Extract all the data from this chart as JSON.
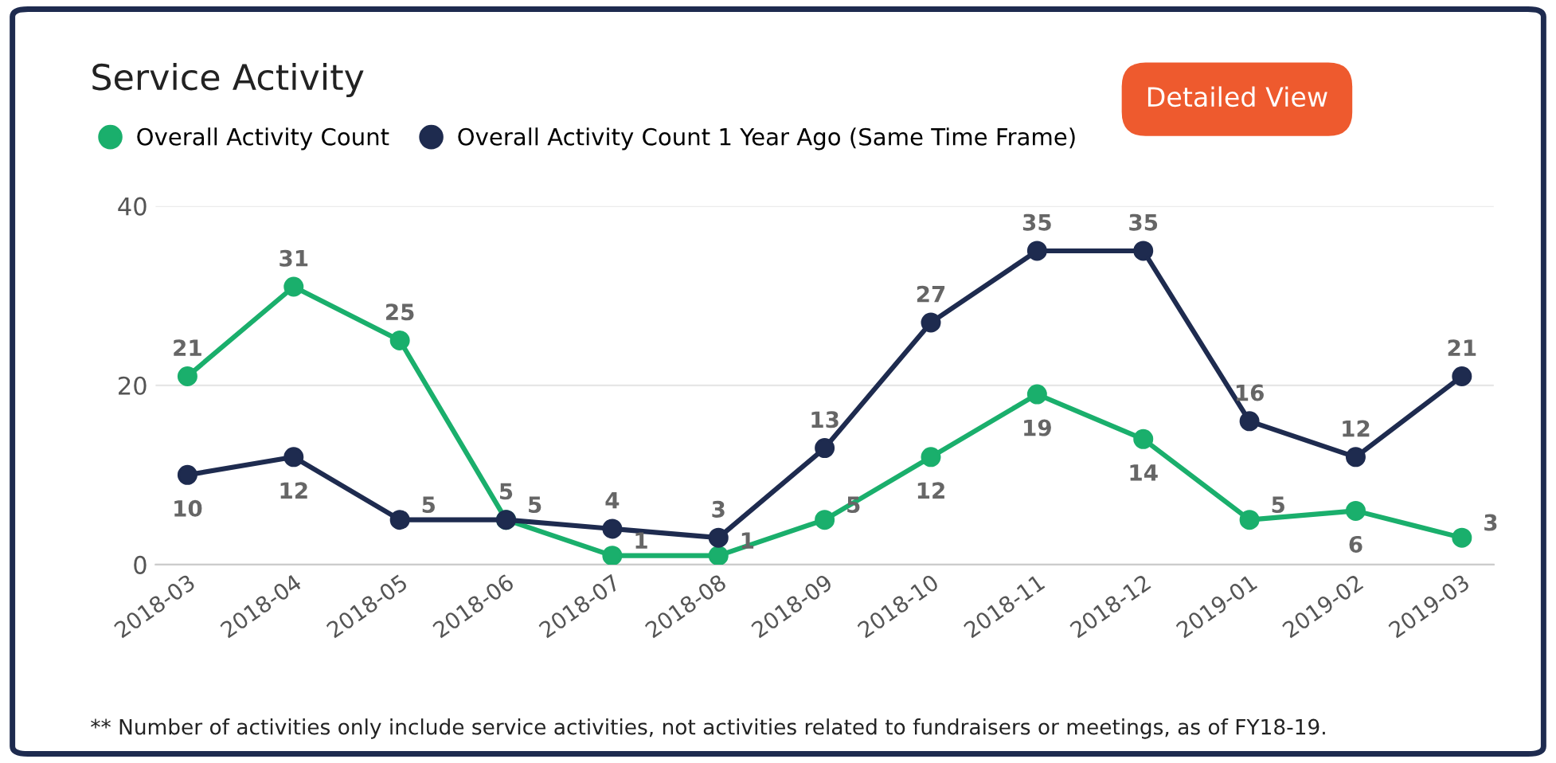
{
  "chart_data": {
    "type": "line",
    "title": "Service Activity",
    "categories": [
      "2018-03",
      "2018-04",
      "2018-05",
      "2018-06",
      "2018-07",
      "2018-08",
      "2018-09",
      "2018-10",
      "2018-11",
      "2018-12",
      "2019-01",
      "2019-02",
      "2019-03"
    ],
    "series": [
      {
        "name": "Overall Activity Count",
        "color": "#1aaf6c",
        "values": [
          21,
          31,
          25,
          5,
          1,
          1,
          5,
          12,
          19,
          14,
          5,
          6,
          3
        ]
      },
      {
        "name": "Overall Activity Count 1 Year Ago (Same Time Frame)",
        "color": "#1e2b4f",
        "values": [
          10,
          12,
          5,
          5,
          4,
          3,
          13,
          27,
          35,
          35,
          16,
          12,
          21
        ]
      }
    ],
    "ylim": [
      0,
      40
    ],
    "yticks": [
      0,
      20,
      40
    ],
    "grid": "y",
    "legend": "top left",
    "marker": "circle",
    "line_style": "solid",
    "data_labels": true,
    "annotations": [
      "Detailed View",
      "** Number of activities only include service activities, not activities related to fundraisers or meetings, as of FY18-19."
    ]
  }
}
